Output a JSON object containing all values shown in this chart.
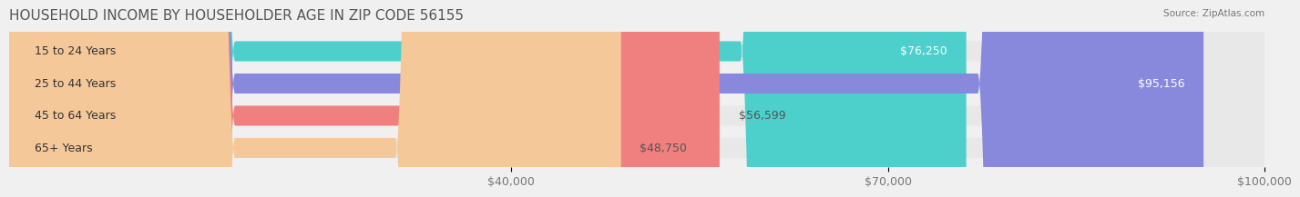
{
  "title": "HOUSEHOLD INCOME BY HOUSEHOLDER AGE IN ZIP CODE 56155",
  "source": "Source: ZipAtlas.com",
  "categories": [
    "15 to 24 Years",
    "25 to 44 Years",
    "45 to 64 Years",
    "65+ Years"
  ],
  "values": [
    76250,
    95156,
    56599,
    48750
  ],
  "bar_colors": [
    "#4dcfcc",
    "#8888dd",
    "#f08080",
    "#f5c899"
  ],
  "label_colors": [
    "#ffffff",
    "#ffffff",
    "#555555",
    "#555555"
  ],
  "background_color": "#f0f0f0",
  "bar_background_color": "#e8e8e8",
  "xlim": [
    0,
    100000
  ],
  "xticks": [
    40000,
    70000,
    100000
  ],
  "xticklabels": [
    "$40,000",
    "$70,000",
    "$100,000"
  ],
  "value_labels": [
    "$76,250",
    "$95,156",
    "$56,599",
    "$48,750"
  ],
  "title_fontsize": 11,
  "tick_fontsize": 9,
  "bar_label_fontsize": 9,
  "category_fontsize": 9
}
